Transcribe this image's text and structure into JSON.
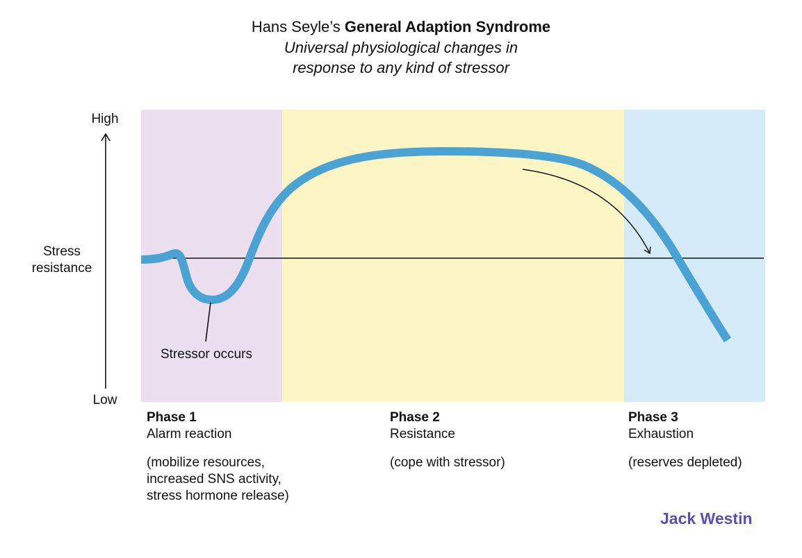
{
  "title": {
    "prefix": "Hans Seyle’s ",
    "bold": "General Adaption Syndrome",
    "subtitle_line1": "Universal physiological changes in",
    "subtitle_line2": "response to any kind of stressor"
  },
  "y_axis": {
    "high": "High",
    "low": "Low",
    "label_line1": "Stress",
    "label_line2": "resistance"
  },
  "annotation": "Stressor occurs",
  "phases": [
    {
      "number": "Phase 1",
      "name": "Alarm reaction",
      "desc_lines": [
        "(mobilize resources,",
        "increased SNS activity,",
        "stress hormone release)"
      ],
      "color": "#ece0f0"
    },
    {
      "number": "Phase 2",
      "name": "Resistance",
      "desc_lines": [
        "(cope with stressor)"
      ],
      "color": "#fbf6c4"
    },
    {
      "number": "Phase 3",
      "name": "Exhaustion",
      "desc_lines": [
        "(reserves depleted)"
      ],
      "color": "#d5ebf7"
    }
  ],
  "curve_color": "#4aa3d2",
  "brand": "Jack Westin"
}
